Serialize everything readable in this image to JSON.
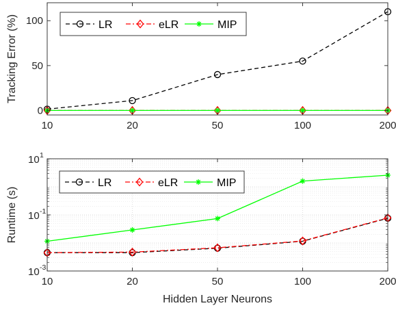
{
  "chart_data": [
    {
      "type": "line",
      "title": "",
      "xlabel": "",
      "ylabel": "Tracking Error (%)",
      "categories": [
        "10",
        "20",
        "50",
        "100",
        "200"
      ],
      "yscale": "linear",
      "ylim": [
        -5,
        120
      ],
      "yticks": [
        {
          "value": 0,
          "label": "0"
        },
        {
          "value": 50,
          "label": "50"
        },
        {
          "value": 100,
          "label": "100"
        }
      ],
      "grid": false,
      "legend_position": "top-left",
      "series": [
        {
          "name": "LR",
          "values": [
            1.5,
            11,
            40,
            55,
            110
          ],
          "color": "#000000",
          "dash": "6,4",
          "marker": "circle"
        },
        {
          "name": "eLR",
          "values": [
            0,
            0,
            0,
            0,
            0
          ],
          "color": "#ff0000",
          "dash": "7,3,2,3",
          "marker": "diamond"
        },
        {
          "name": "MIP",
          "values": [
            0,
            0,
            0,
            0,
            0
          ],
          "color": "#00ff00",
          "dash": "",
          "marker": "asterisk"
        }
      ]
    },
    {
      "type": "line",
      "title": "",
      "xlabel": "Hidden Layer Neurons",
      "ylabel": "Runtime (s)",
      "categories": [
        "10",
        "20",
        "50",
        "100",
        "200"
      ],
      "yscale": "log",
      "ylim": [
        0.001,
        10
      ],
      "yticks": [
        {
          "value": 0.001,
          "base": "10",
          "exp": "-3"
        },
        {
          "value": 0.1,
          "base": "10",
          "exp": "-1"
        },
        {
          "value": 10,
          "base": "10",
          "exp": "1"
        }
      ],
      "grid": true,
      "legend_position": "top-left",
      "series": [
        {
          "name": "LR",
          "values": [
            0.0045,
            0.0045,
            0.0065,
            0.0115,
            0.076
          ],
          "color": "#000000",
          "dash": "6,4",
          "marker": "circle"
        },
        {
          "name": "eLR",
          "values": [
            0.0045,
            0.0047,
            0.0067,
            0.0118,
            0.078
          ],
          "color": "#ff0000",
          "dash": "7,3,2,3",
          "marker": "diamond"
        },
        {
          "name": "MIP",
          "values": [
            0.0115,
            0.029,
            0.074,
            1.6,
            2.6
          ],
          "color": "#00ff00",
          "dash": "",
          "marker": "asterisk"
        }
      ]
    }
  ]
}
